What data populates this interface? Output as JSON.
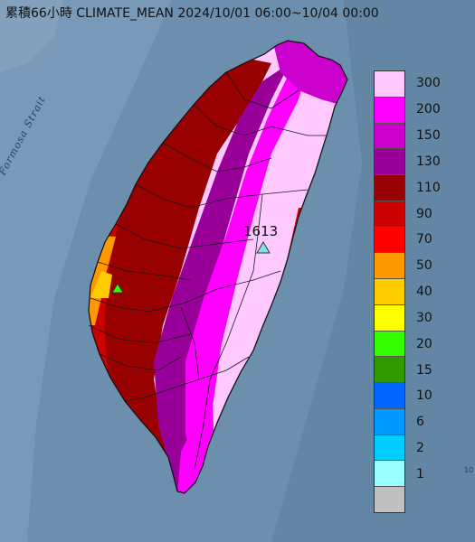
{
  "title": "累積66小時 CLIMATE_MEAN 2024/10/01 06:00~10/04 00:00",
  "strait_label": "Formosa Strait",
  "peak": {
    "value": "1613",
    "marker_color": "#7fe6e6"
  },
  "edge_mark": "10",
  "legend": [
    {
      "label": "300",
      "color": "#ffc8ff"
    },
    {
      "label": "200",
      "color": "#ff00ff"
    },
    {
      "label": "150",
      "color": "#cc00cc"
    },
    {
      "label": "130",
      "color": "#990099"
    },
    {
      "label": "110",
      "color": "#990000"
    },
    {
      "label": "90",
      "color": "#cc0000"
    },
    {
      "label": "70",
      "color": "#ff0000"
    },
    {
      "label": "50",
      "color": "#ff9900"
    },
    {
      "label": "40",
      "color": "#ffcc00"
    },
    {
      "label": "30",
      "color": "#ffff00"
    },
    {
      "label": "20",
      "color": "#33ff00"
    },
    {
      "label": "15",
      "color": "#339900"
    },
    {
      "label": "10",
      "color": "#0066ff"
    },
    {
      "label": "6",
      "color": "#0099ff"
    },
    {
      "label": "2",
      "color": "#00ccff"
    },
    {
      "label": "1",
      "color": "#99ffff"
    },
    {
      "label": "",
      "color": "#c0c0c0"
    }
  ]
}
